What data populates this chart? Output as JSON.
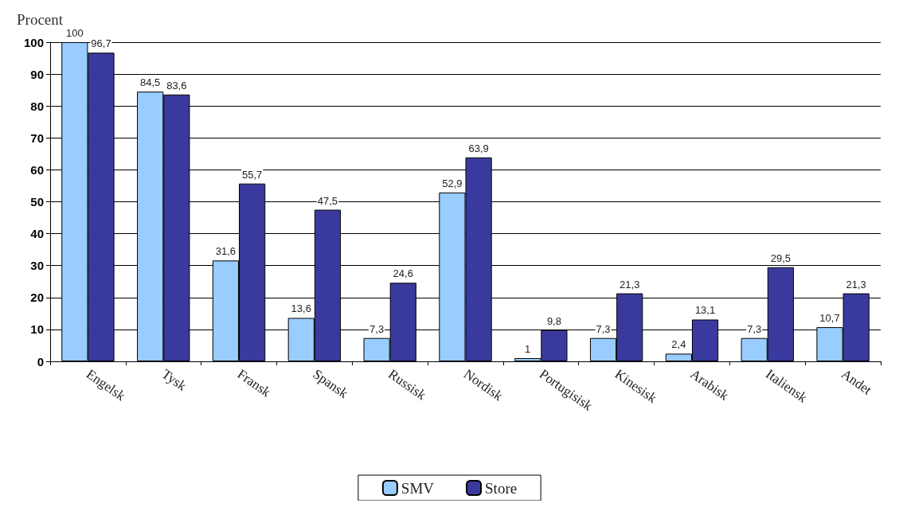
{
  "chart_data": {
    "type": "bar",
    "ylabel": "Procent",
    "categories": [
      "Engelsk",
      "Tysk",
      "Fransk",
      "Spansk",
      "Russisk",
      "Nordisk",
      "Portugisisk",
      "Kinesisk",
      "Arabisk",
      "Italiensk",
      "Andet"
    ],
    "series": [
      {
        "name": "SMV",
        "color": "#99ccff",
        "values": [
          100,
          84.5,
          31.6,
          13.6,
          7.3,
          52.9,
          1,
          7.3,
          2.4,
          7.3,
          10.7
        ],
        "value_labels": [
          "100",
          "84,5",
          "31,6",
          "13,6",
          "7,3",
          "52,9",
          "1",
          "7,3",
          "2,4",
          "7,3",
          "10,7"
        ]
      },
      {
        "name": "Store",
        "color": "#3a3a9e",
        "values": [
          96.7,
          83.6,
          55.7,
          47.5,
          24.6,
          63.9,
          9.8,
          21.3,
          13.1,
          29.5,
          21.3
        ],
        "value_labels": [
          "96,7",
          "83,6",
          "55,7",
          "47,5",
          "24,6",
          "63,9",
          "9,8",
          "21,3",
          "13,1",
          "29,5",
          "21,3"
        ]
      }
    ],
    "ylim": [
      0,
      100
    ],
    "yticks": [
      0,
      10,
      20,
      30,
      40,
      50,
      60,
      70,
      80,
      90,
      100
    ],
    "grid": "y",
    "legend": "bottom"
  }
}
